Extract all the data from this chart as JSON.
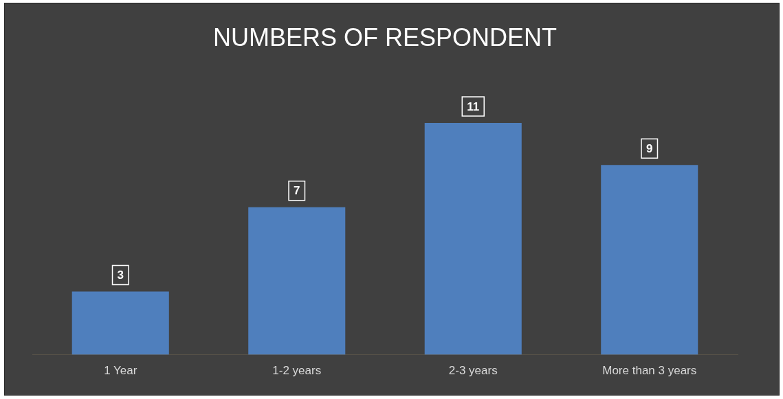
{
  "chart_data": {
    "type": "bar",
    "title": "NUMBERS OF RESPONDENT",
    "categories": [
      "1 Year",
      "1-2 years",
      "2-3 years",
      "More than 3 years"
    ],
    "values": [
      3,
      7,
      11,
      9
    ],
    "color": "#4f7fbd",
    "data_labels": true,
    "grid": false,
    "legend": false
  }
}
